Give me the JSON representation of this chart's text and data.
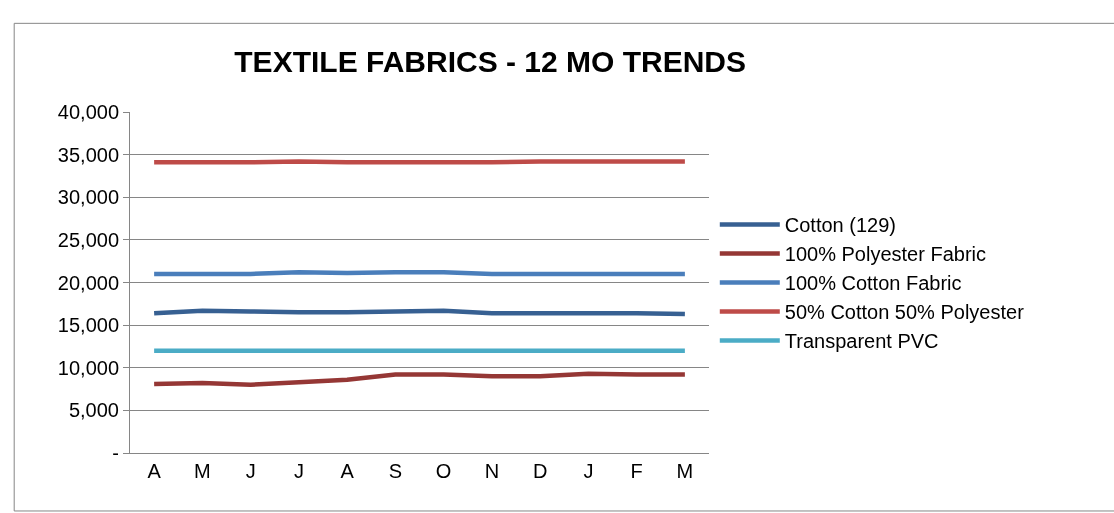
{
  "chart_data": {
    "type": "line",
    "title": "TEXTILE FABRICS - 12 MO TRENDS",
    "categories": [
      "A",
      "M",
      "J",
      "J",
      "A",
      "S",
      "O",
      "N",
      "D",
      "J",
      "F",
      "M"
    ],
    "series": [
      {
        "name": "Cotton (129)",
        "color": "#376092",
        "values": [
          16400,
          16700,
          16600,
          16500,
          16500,
          16600,
          16700,
          16400,
          16400,
          16400,
          16400,
          16300
        ]
      },
      {
        "name": "100% Polyester Fabric",
        "color": "#953735",
        "values": [
          8100,
          8200,
          8000,
          8300,
          8600,
          9200,
          9200,
          9000,
          9000,
          9300,
          9200,
          9200
        ]
      },
      {
        "name": "100% Cotton Fabric",
        "color": "#4a7ebb",
        "values": [
          21000,
          21000,
          21000,
          21200,
          21100,
          21200,
          21200,
          21000,
          21000,
          21000,
          21000,
          21000
        ]
      },
      {
        "name": "50% Cotton 50% Polyester",
        "color": "#be4b48",
        "values": [
          34100,
          34100,
          34100,
          34200,
          34100,
          34100,
          34100,
          34100,
          34200,
          34200,
          34200,
          34200
        ]
      },
      {
        "name": "Transparent PVC",
        "color": "#4bacc6",
        "values": [
          12000,
          12000,
          12000,
          12000,
          12000,
          12000,
          12000,
          12000,
          12000,
          12000,
          12000,
          12000
        ]
      }
    ],
    "ylim": [
      0,
      40000
    ],
    "yticks": [
      {
        "value": 0,
        "label": "-"
      },
      {
        "value": 5000,
        "label": "5,000"
      },
      {
        "value": 10000,
        "label": "10,000"
      },
      {
        "value": 15000,
        "label": "15,000"
      },
      {
        "value": 20000,
        "label": "20,000"
      },
      {
        "value": 25000,
        "label": "25,000"
      },
      {
        "value": 30000,
        "label": "30,000"
      },
      {
        "value": 35000,
        "label": "35,000"
      },
      {
        "value": 40000,
        "label": "40,000"
      }
    ],
    "grid": "y",
    "legend": "right",
    "marker": "none",
    "line_style": "solid"
  }
}
